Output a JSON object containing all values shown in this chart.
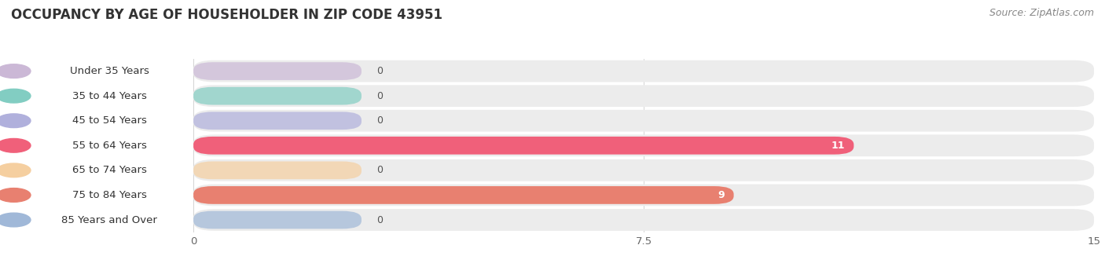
{
  "title": "OCCUPANCY BY AGE OF HOUSEHOLDER IN ZIP CODE 43951",
  "source": "Source: ZipAtlas.com",
  "categories": [
    "Under 35 Years",
    "35 to 44 Years",
    "45 to 54 Years",
    "55 to 64 Years",
    "65 to 74 Years",
    "75 to 84 Years",
    "85 Years and Over"
  ],
  "values": [
    0,
    0,
    0,
    11,
    0,
    9,
    0
  ],
  "bar_colors": [
    "#cbb8d6",
    "#82cdc2",
    "#b0b0dc",
    "#f0607a",
    "#f5cfa0",
    "#e88070",
    "#a0b8d8"
  ],
  "background_color": "#ffffff",
  "row_bg_color": "#ececec",
  "xlim": [
    0,
    15
  ],
  "xticks": [
    0,
    7.5,
    15
  ],
  "title_fontsize": 12,
  "label_fontsize": 9.5,
  "value_fontsize": 9,
  "source_fontsize": 9
}
